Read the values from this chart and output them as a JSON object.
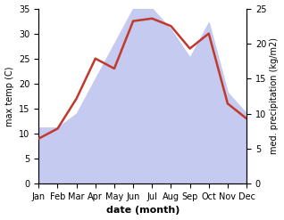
{
  "months": [
    "Jan",
    "Feb",
    "Mar",
    "Apr",
    "May",
    "Jun",
    "Jul",
    "Aug",
    "Sep",
    "Oct",
    "Nov",
    "Dec"
  ],
  "temp": [
    9,
    11,
    17,
    25,
    23,
    32.5,
    33,
    31.5,
    27,
    30,
    16,
    13
  ],
  "precip": [
    8,
    8,
    10,
    15,
    20,
    25,
    25,
    22,
    18,
    23,
    13,
    10
  ],
  "temp_color": "#c0392b",
  "precip_fill_color": "#c5caf0",
  "temp_ylim": [
    0,
    35
  ],
  "precip_ylim": [
    0,
    25
  ],
  "temp_yticks": [
    0,
    5,
    10,
    15,
    20,
    25,
    30,
    35
  ],
  "precip_yticks": [
    0,
    5,
    10,
    15,
    20,
    25
  ],
  "xlabel": "date (month)",
  "ylabel_left": "max temp (C)",
  "ylabel_right": "med. precipitation (kg/m2)",
  "axis_fontsize": 8,
  "tick_fontsize": 7,
  "line_width": 1.8
}
